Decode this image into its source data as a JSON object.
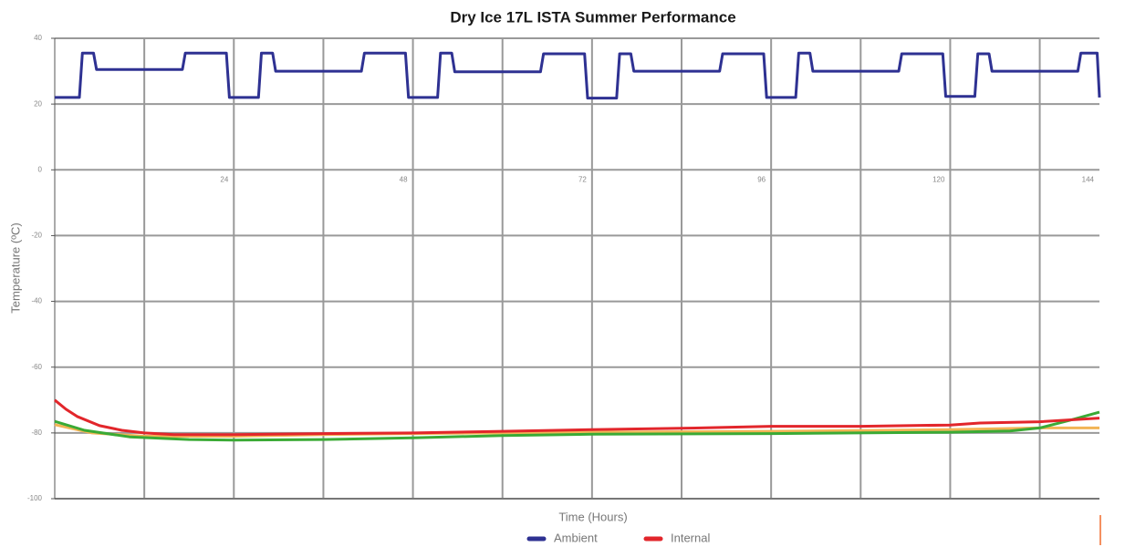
{
  "chart_data": {
    "type": "line",
    "title": "Dry Ice 17L ISTA Summer Performance",
    "x_label": "Time (Hours)",
    "y_label": "Temperature (ºC)",
    "xlim": [
      0,
      140
    ],
    "ylim": [
      -100,
      40
    ],
    "xticks": [
      24,
      48,
      72,
      96,
      120,
      144
    ],
    "xgrid": [
      12,
      36,
      60,
      84,
      108,
      132
    ],
    "yticks": [
      -100,
      -80,
      -60,
      -40,
      -20,
      0,
      20,
      40
    ],
    "grid": true,
    "legend": "bottom",
    "series": [
      {
        "name": "Ambient",
        "color": "#2e3192",
        "x": [
          0,
          3.3,
          3.7,
          5.2,
          5.6,
          17.1,
          17.5,
          23,
          23.4,
          27.3,
          27.7,
          29.2,
          29.6,
          41.1,
          41.5,
          47,
          47.4,
          51.3,
          51.7,
          53.2,
          53.6,
          65.1,
          65.5,
          71,
          71.4,
          75.3,
          75.7,
          77.2,
          77.6,
          89.1,
          89.5,
          95,
          95.4,
          99.3,
          99.7,
          101.2,
          101.6,
          113.1,
          113.5,
          119,
          119.4,
          123.3,
          123.7,
          125.2,
          125.6,
          137.1,
          137.5,
          139.7,
          140
        ],
        "values": [
          22,
          22,
          35.5,
          35.5,
          30.5,
          30.5,
          35.5,
          35.5,
          22,
          22,
          35.5,
          35.5,
          30,
          30,
          35.5,
          35.5,
          22,
          22,
          35.5,
          35.5,
          29.8,
          29.8,
          35.3,
          35.3,
          21.8,
          21.8,
          35.3,
          35.3,
          30,
          30,
          35.3,
          35.3,
          22,
          22,
          35.5,
          35.5,
          30,
          30,
          35.3,
          35.3,
          22.3,
          22.3,
          35.3,
          35.3,
          30,
          30,
          35.5,
          35.5,
          22
        ]
      },
      {
        "name": "Internal",
        "color": "#e2262b",
        "x": [
          0,
          1.5,
          3,
          6,
          9,
          12,
          16,
          24,
          36,
          48,
          60,
          72,
          84,
          96,
          108,
          120,
          124,
          132,
          140
        ],
        "values": [
          -70,
          -72.8,
          -75,
          -77.8,
          -79.2,
          -80,
          -80.5,
          -80.5,
          -80.2,
          -80,
          -79.5,
          -79,
          -78.6,
          -78,
          -78,
          -77.6,
          -77,
          -76.6,
          -75.5
        ]
      },
      {
        "color": "#3aaa35",
        "x": [
          0,
          4,
          10,
          18,
          24,
          36,
          48,
          60,
          72,
          96,
          120,
          128,
          132,
          136,
          140
        ],
        "values": [
          -76.5,
          -79.2,
          -81.2,
          -82,
          -82.2,
          -82,
          -81.5,
          -80.8,
          -80.4,
          -80.2,
          -79.8,
          -79.4,
          -78.5,
          -76.2,
          -73.7
        ]
      },
      {
        "color": "#f2b455",
        "x": [
          0,
          5,
          12,
          24,
          36,
          48,
          72,
          96,
          120,
          132,
          140
        ],
        "values": [
          -77.5,
          -80,
          -81,
          -81,
          -80.5,
          -80.2,
          -79.8,
          -79.5,
          -79,
          -78.5,
          -78.5
        ]
      }
    ]
  }
}
